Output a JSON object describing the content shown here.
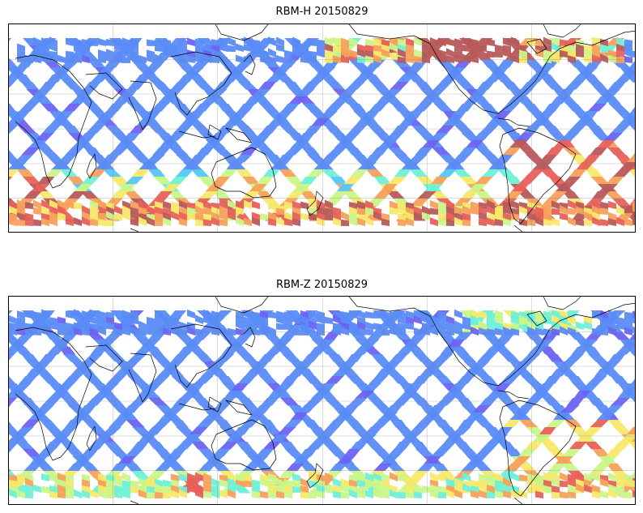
{
  "panels": [
    {
      "title": "RBM-H 20150829",
      "palette": [
        "#6b63f2",
        "#5a8cf7",
        "#55c8f7",
        "#6ef0d8",
        "#c8f58a",
        "#f7e86a",
        "#f7a05a",
        "#e8605a",
        "#b85a5a"
      ],
      "gridlines": true,
      "coastlines": true
    },
    {
      "title": "RBM-Z 20150829",
      "palette": [
        "#6b63f2",
        "#5a8cf7",
        "#55c8f7",
        "#6ef0d8",
        "#c8f58a",
        "#f7e86a",
        "#f7a05a",
        "#e8605a",
        "#b85a5a"
      ],
      "gridlines": true,
      "coastlines": true
    }
  ]
}
